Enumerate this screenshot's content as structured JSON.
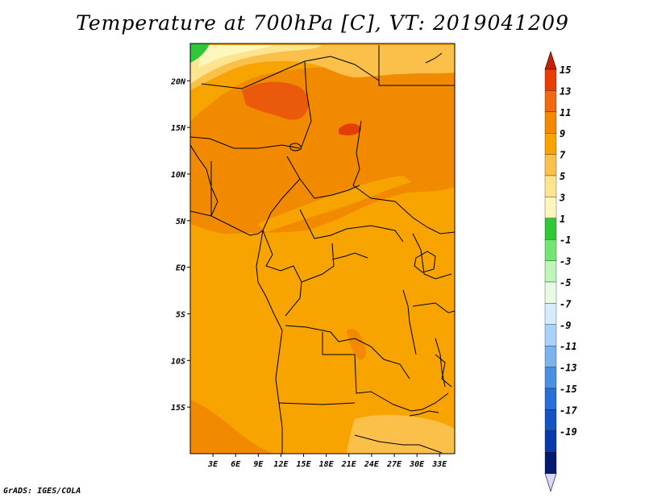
{
  "title": "Temperature at 700hPa [C], VT: 2019041209",
  "credit": "GrADS: IGES/COLA",
  "map": {
    "lon_range": [
      0,
      35
    ],
    "lat_range": [
      -20,
      24
    ],
    "lon_ticks": [
      "3E",
      "6E",
      "9E",
      "12E",
      "15E",
      "18E",
      "21E",
      "24E",
      "27E",
      "30E",
      "33E"
    ],
    "lon_tick_values": [
      3,
      6,
      9,
      12,
      15,
      18,
      21,
      24,
      27,
      30,
      33
    ],
    "lat_ticks": [
      "20N",
      "15N",
      "10N",
      "5N",
      "EQ",
      "5S",
      "10S",
      "15S"
    ],
    "lat_tick_values": [
      20,
      15,
      10,
      5,
      0,
      -5,
      -10,
      -15
    ],
    "base_fill": "#f8a400"
  },
  "colorbar": {
    "labels": [
      "15",
      "13",
      "11",
      "9",
      "7",
      "5",
      "3",
      "1",
      "-1",
      "-3",
      "-5",
      "-7",
      "-9",
      "-11",
      "-13",
      "-15",
      "-17",
      "-19"
    ],
    "colors": [
      "#ea3c05",
      "#f06a0f",
      "#f28a00",
      "#f8a400",
      "#fac04a",
      "#fde58f",
      "#fdf7be",
      "#2fc83a",
      "#72e572",
      "#bff5b6",
      "#e6fae6",
      "#d4ecfb",
      "#a8d2f7",
      "#7ab4ef",
      "#4a90e2",
      "#2a6fd6",
      "#1453c4",
      "#0a3aa8",
      "#06196e"
    ],
    "top_tip": "#cc1e00",
    "bottom_tip": "#d6daf8"
  }
}
